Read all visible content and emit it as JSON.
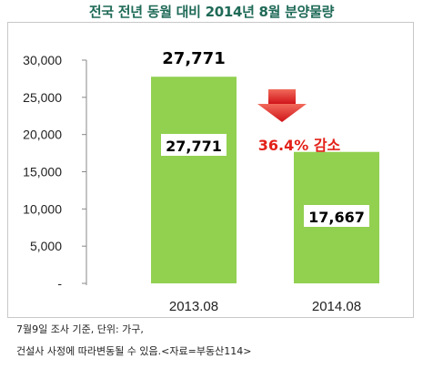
{
  "title": "전국 전년 동월 대비 2014년 8월 분양물량",
  "chart_data": {
    "type": "bar",
    "categories": [
      "2013.08",
      "2014.08"
    ],
    "values": [
      27771,
      17667
    ],
    "value_labels": [
      "27,771",
      "17,667"
    ],
    "top_label": "27,771",
    "yticks": [
      "30,000",
      "25,000",
      "20,000",
      "15,000",
      "10,000",
      "5,000",
      "-"
    ],
    "ylim": [
      0,
      30000
    ],
    "bar_color": "#92d050",
    "annotation": {
      "text": "36.4% 감소",
      "color": "#e32119",
      "icon": "down-arrow-icon"
    }
  },
  "notes": [
    "7월9일 조사 기준, 단위: 가구,",
    "건설사 사정에 따라변동될 수 있음.<자료=부동산114>"
  ]
}
